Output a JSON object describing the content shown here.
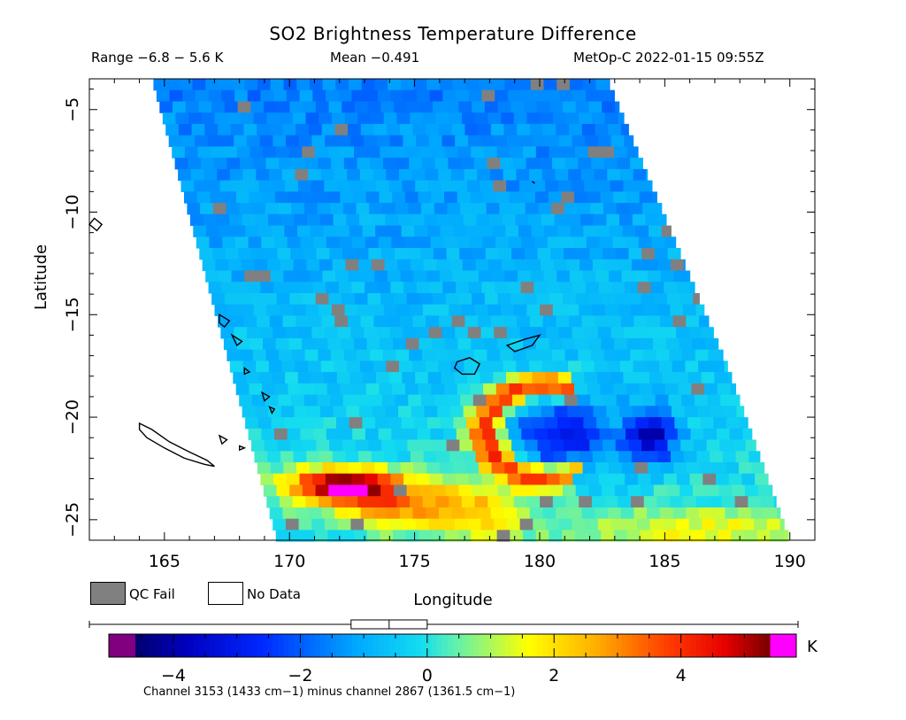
{
  "header": {
    "title": "SO2 Brightness Temperature Difference",
    "range": "Range −6.8 − 5.6 K",
    "mean": "Mean −0.491",
    "satellite": "MetOp-C 2022-01-15 09:55Z"
  },
  "legend": {
    "qc_fail_label": "QC Fail",
    "no_data_label": "No Data",
    "qc_fail_color": "#808080",
    "no_data_color": "#ffffff"
  },
  "footnote": "Channel 3153 (1433 cm−1) minus channel 2867 (1361.5 cm−1)",
  "chart_data": {
    "type": "heatmap",
    "title": "SO2 Brightness Temperature Difference",
    "xlabel": "Longitude",
    "ylabel": "Latitude",
    "xlim": [
      162,
      191
    ],
    "ylim": [
      -26,
      -3.5
    ],
    "x_ticks": [
      165,
      170,
      175,
      180,
      185,
      190
    ],
    "x_tick_labels": [
      "165",
      "170",
      "175",
      "180",
      "185",
      "190"
    ],
    "y_ticks": [
      -5,
      -10,
      -15,
      -20,
      -25
    ],
    "y_tick_labels": [
      "−5",
      "−10",
      "−15",
      "−20",
      "−25"
    ],
    "units": "K",
    "value_range": [
      -6.8,
      5.6
    ],
    "mean": -0.491,
    "colorbar": {
      "vmin": -4.6,
      "vmax": 5.4,
      "ticks": [
        -4,
        -2,
        0,
        2,
        4
      ],
      "tick_labels": [
        "−4",
        "−2",
        "0",
        "2",
        "4"
      ],
      "unit_label": "K",
      "under_color": "#800080",
      "over_color": "#ff00ff",
      "box_whisker": {
        "min": -2.5,
        "q1": -1.2,
        "median": -0.6,
        "q3": 0.0,
        "max": 5.4
      }
    },
    "swath": {
      "top_left": [
        164.5,
        -3.5
      ],
      "top_right": [
        182.7,
        -3.5
      ],
      "bottom_left": [
        169.5,
        -26
      ],
      "bottom_right": [
        190.0,
        -26
      ],
      "right_edge_mid": [
        187.5,
        -17.5
      ]
    },
    "features": [
      {
        "name": "SO2 plume core",
        "lon": 181.2,
        "lat": -21.0,
        "value": -4.0
      },
      {
        "name": "plume arc",
        "lon": 178.5,
        "lat": -20.5,
        "value": 4.0
      },
      {
        "name": "plume west",
        "lon": 172.0,
        "lat": -23.3,
        "value": 4.5
      }
    ]
  }
}
